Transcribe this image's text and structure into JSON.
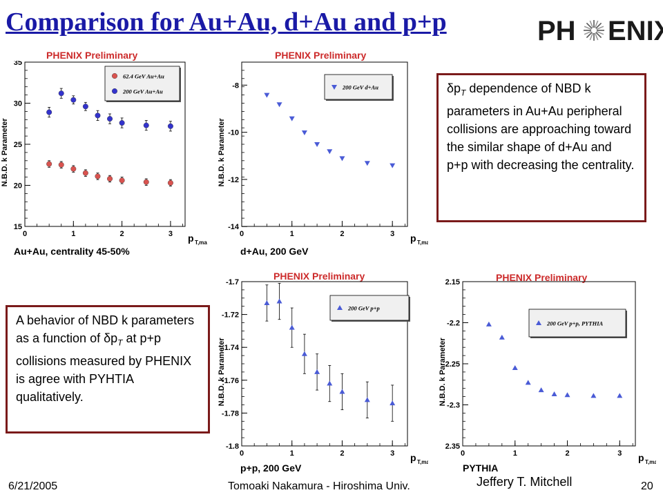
{
  "slide": {
    "title": "Comparison for Au+Au, d+Au and p+p",
    "logo": {
      "text_left": "PH",
      "text_right": "ENIX",
      "icon": "starburst-icon"
    },
    "footer": {
      "date": "6/21/2005",
      "presenter": "Tomoaki Nakamura - Hiroshima Univ.",
      "page": "20",
      "author": "Jeffery T. Mitchell"
    },
    "textbox_top": {
      "line1_prefix": "δp",
      "line1_sub": "T",
      "line1_rest": " dependence of NBD k parameters in Au+Au peripheral collisions are approaching toward the similar shape of d+Au and p+p with decreasing the centrality."
    },
    "textbox_bottom": {
      "part1": "A behavior of NBD k parameters as a function of δp",
      "sub": "T",
      "part2": " at p+p collisions measured by PHENIX is agree with PYHTIA qualitatively."
    }
  },
  "colors": {
    "title": "#1a1aa6",
    "prelim": "#cc2a2a",
    "box_border": "#7a1a1a",
    "red_marker": "#d9534f",
    "blue_marker": "#3333cc",
    "tri_marker": "#4a5bd6"
  },
  "chart_data": [
    {
      "type": "scatter",
      "prelim": "PHENIX Preliminary",
      "caption": "Au+Au, centrality 45-50%",
      "ylabel": "N.B.D. k Parameter",
      "xlabel": "p",
      "xlabel_sub": "T,max",
      "xlim": [
        0,
        3.3
      ],
      "ylim": [
        15,
        35
      ],
      "xticks": [
        "0",
        "1",
        "2",
        "3"
      ],
      "yticks": [
        "15",
        "20",
        "25",
        "30",
        "35"
      ],
      "series": [
        {
          "name": "62.4 GeV Au+Au",
          "marker": "circle",
          "color": "#d9534f",
          "x": [
            0.5,
            0.75,
            1.0,
            1.25,
            1.5,
            1.75,
            2.0,
            2.5,
            3.0
          ],
          "y": [
            22.6,
            22.5,
            22.0,
            21.5,
            21.1,
            20.8,
            20.6,
            20.4,
            20.3
          ],
          "err": [
            0.4,
            0.4,
            0.4,
            0.4,
            0.4,
            0.4,
            0.4,
            0.4,
            0.4
          ]
        },
        {
          "name": "200 GeV Au+Au",
          "marker": "circle",
          "color": "#3333cc",
          "x": [
            0.5,
            0.75,
            1.0,
            1.25,
            1.5,
            1.75,
            2.0,
            2.5,
            3.0
          ],
          "y": [
            28.9,
            31.2,
            30.4,
            29.6,
            28.5,
            28.1,
            27.6,
            27.3,
            27.2
          ],
          "err": [
            0.6,
            0.6,
            0.5,
            0.5,
            0.6,
            0.6,
            0.6,
            0.6,
            0.6
          ]
        }
      ]
    },
    {
      "type": "scatter",
      "prelim": "PHENIX Preliminary",
      "caption": "d+Au, 200 GeV",
      "ylabel": "N.B.D. k Parameter",
      "xlabel": "p",
      "xlabel_sub": "T,max",
      "xlim": [
        0,
        3.3
      ],
      "ylim": [
        -14,
        -7
      ],
      "xticks": [
        "0",
        "1",
        "2",
        "3"
      ],
      "yticks": [
        "-8",
        "-10",
        "-12",
        "-14"
      ],
      "series": [
        {
          "name": "200 GeV d+Au",
          "marker": "triangle-down",
          "color": "#4a5bd6",
          "x": [
            0.5,
            0.75,
            1.0,
            1.25,
            1.5,
            1.75,
            2.0,
            2.5,
            3.0
          ],
          "y": [
            -8.4,
            -8.8,
            -9.4,
            -10.0,
            -10.5,
            -10.8,
            -11.1,
            -11.3,
            -11.4
          ],
          "err": [
            0,
            0,
            0,
            0,
            0,
            0,
            0,
            0,
            0
          ]
        }
      ]
    },
    {
      "type": "scatter",
      "prelim": "PHENIX Preliminary",
      "caption": "p+p, 200 GeV",
      "ylabel": "N.B.D. k Parameter",
      "xlabel": "p",
      "xlabel_sub": "T,max",
      "xlim": [
        0,
        3.3
      ],
      "ylim": [
        -1.8,
        -1.7
      ],
      "xticks": [
        "0",
        "1",
        "2",
        "3"
      ],
      "yticks": [
        "-1.7",
        "-1.72",
        "-1.74",
        "-1.76",
        "-1.78",
        "-1.8"
      ],
      "series": [
        {
          "name": "200 GeV p+p",
          "marker": "triangle-up",
          "color": "#4a5bd6",
          "x": [
            0.5,
            0.75,
            1.0,
            1.25,
            1.5,
            1.75,
            2.0,
            2.5,
            3.0
          ],
          "y": [
            -1.713,
            -1.712,
            -1.728,
            -1.744,
            -1.755,
            -1.762,
            -1.767,
            -1.772,
            -1.774
          ],
          "err": [
            0.011,
            0.011,
            0.012,
            0.012,
            0.011,
            0.011,
            0.011,
            0.011,
            0.011
          ]
        }
      ]
    },
    {
      "type": "scatter",
      "prelim": "PHENIX Preliminary",
      "caption": "PYTHIA",
      "ylabel": "N.B.D. k Parameter",
      "xlabel": "p",
      "xlabel_sub": "T,max",
      "xlim": [
        0,
        3.3
      ],
      "ylim": [
        -2.35,
        -2.15
      ],
      "xticks": [
        "0",
        "1",
        "2",
        "3"
      ],
      "yticks": [
        "2.15",
        "-2.2",
        "-2.25",
        "-2.3",
        "2.35"
      ],
      "series": [
        {
          "name": "200 GeV p+p, PYTHIA",
          "marker": "triangle-up",
          "color": "#4a5bd6",
          "x": [
            0.5,
            0.75,
            1.0,
            1.25,
            1.5,
            1.75,
            2.0,
            2.5,
            3.0
          ],
          "y": [
            -2.202,
            -2.218,
            -2.255,
            -2.273,
            -2.282,
            -2.287,
            -2.288,
            -2.289,
            -2.289
          ],
          "err": [
            0,
            0,
            0,
            0,
            0,
            0,
            0,
            0,
            0
          ]
        }
      ]
    }
  ]
}
